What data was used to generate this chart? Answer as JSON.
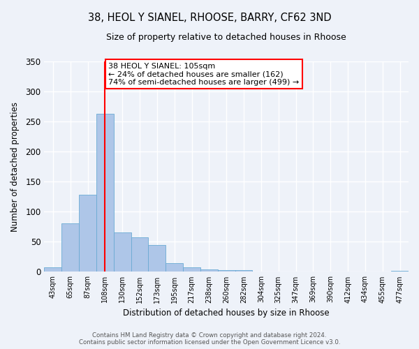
{
  "title_line1": "38, HEOL Y SIANEL, RHOOSE, BARRY, CF62 3ND",
  "title_line2": "Size of property relative to detached houses in Rhoose",
  "xlabel": "Distribution of detached houses by size in Rhoose",
  "ylabel": "Number of detached properties",
  "bar_labels": [
    "43sqm",
    "65sqm",
    "87sqm",
    "108sqm",
    "130sqm",
    "152sqm",
    "173sqm",
    "195sqm",
    "217sqm",
    "238sqm",
    "260sqm",
    "282sqm",
    "304sqm",
    "325sqm",
    "347sqm",
    "369sqm",
    "390sqm",
    "412sqm",
    "434sqm",
    "455sqm",
    "477sqm"
  ],
  "bar_values": [
    7,
    81,
    128,
    263,
    66,
    57,
    45,
    15,
    7,
    4,
    3,
    3,
    0,
    0,
    0,
    0,
    0,
    0,
    0,
    0,
    2
  ],
  "bar_color": "#aec6e8",
  "bar_edge_color": "#6aaad4",
  "vline_x": 3,
  "vline_color": "red",
  "annotation_text": "38 HEOL Y SIANEL: 105sqm\n← 24% of detached houses are smaller (162)\n74% of semi-detached houses are larger (499) →",
  "annotation_box_color": "white",
  "annotation_edge_color": "red",
  "ylim": [
    0,
    350
  ],
  "yticks": [
    0,
    50,
    100,
    150,
    200,
    250,
    300,
    350
  ],
  "footer_line1": "Contains HM Land Registry data © Crown copyright and database right 2024.",
  "footer_line2": "Contains public sector information licensed under the Open Government Licence v3.0.",
  "bg_color": "#eef2f9",
  "grid_color": "white"
}
